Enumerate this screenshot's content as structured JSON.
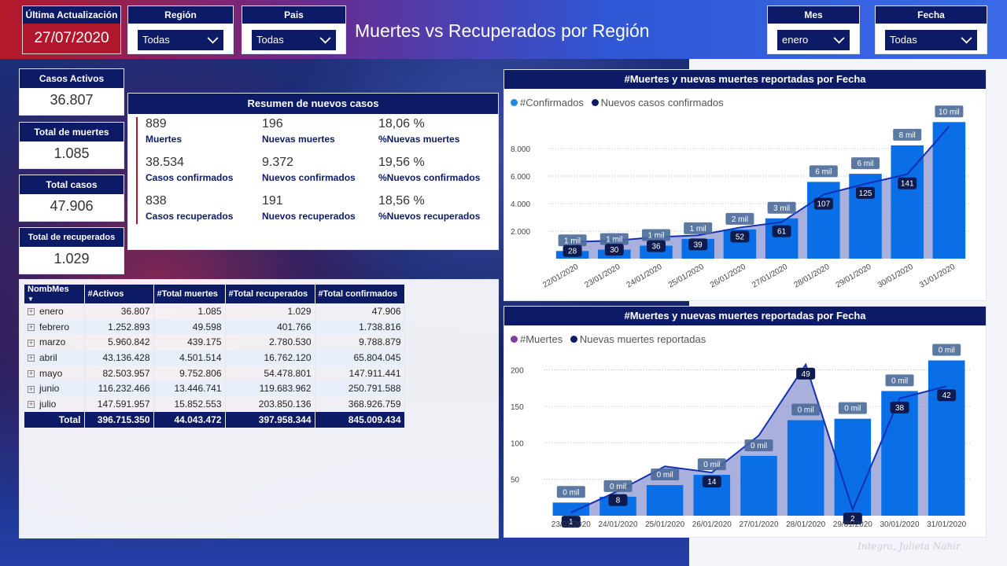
{
  "header": {
    "last_update_label": "Última Actualización",
    "last_update_value": "27/07/2020",
    "title": "Muertes vs Recuperados por Región",
    "slicers": [
      {
        "label": "Región",
        "value": "Todas"
      },
      {
        "label": "Pais",
        "value": "Todas"
      },
      {
        "label": "Mes",
        "value": "enero"
      },
      {
        "label": "Fecha",
        "value": "Todas"
      }
    ]
  },
  "kpis": [
    {
      "label": "Casos Activos",
      "value": "36.807"
    },
    {
      "label": "Total de muertes",
      "value": "1.085"
    },
    {
      "label": "Total casos",
      "value": "47.906"
    },
    {
      "label": "Total de recuperados",
      "value": "1.029"
    }
  ],
  "summary": {
    "title": "Resumen de nuevos casos",
    "rows": [
      [
        {
          "n": "889",
          "t": "Muertes"
        },
        {
          "n": "196",
          "t": "Nuevas muertes"
        },
        {
          "n": "18,06 %",
          "t": "%Nuevas muertes"
        }
      ],
      [
        {
          "n": "38.534",
          "t": "Casos confirmados"
        },
        {
          "n": "9.372",
          "t": "Nuevos confirmados"
        },
        {
          "n": "19,56 %",
          "t": "%Nuevos confirmados"
        }
      ],
      [
        {
          "n": "838",
          "t": "Casos recuperados"
        },
        {
          "n": "191",
          "t": "Nuevos recuperados"
        },
        {
          "n": "18,56 %",
          "t": "%Nuevos recuperados"
        }
      ]
    ]
  },
  "table": {
    "headers": [
      "NombMes",
      "#Activos",
      "#Total muertes",
      "#Total recuperados",
      "#Total confirmados"
    ],
    "rows": [
      [
        "enero",
        "36.807",
        "1.085",
        "1.029",
        "47.906"
      ],
      [
        "febrero",
        "1.252.893",
        "49.598",
        "401.766",
        "1.738.816"
      ],
      [
        "marzo",
        "5.960.842",
        "439.175",
        "2.780.530",
        "9.788.879"
      ],
      [
        "abril",
        "43.136.428",
        "4.501.514",
        "16.762.120",
        "65.804.045"
      ],
      [
        "mayo",
        "82.503.957",
        "9.752.806",
        "54.478.801",
        "147.911.441"
      ],
      [
        "junio",
        "116.232.466",
        "13.446.741",
        "119.683.962",
        "250.791.588"
      ],
      [
        "julio",
        "147.591.957",
        "15.852.553",
        "203.850.136",
        "368.926.759"
      ]
    ],
    "total": [
      "Total",
      "396.715.350",
      "44.043.472",
      "397.958.344",
      "845.009.434"
    ]
  },
  "colors": {
    "navy": "#0d1b66",
    "red": "#b0172d",
    "bar_blue": "#0a6fe6",
    "line_blue": "#1230b4",
    "area": "#9aa2d6"
  },
  "chart_data": [
    {
      "type": "bar",
      "title": "#Muertes y nuevas muertes reportadas por Fecha",
      "legend": [
        "#Confirmados",
        "Nuevos casos confirmados"
      ],
      "legend_colors": [
        "#1e88e5",
        "#0d1b66"
      ],
      "categories": [
        "22/01/2020",
        "23/01/2020",
        "24/01/2020",
        "25/01/2020",
        "26/01/2020",
        "27/01/2020",
        "28/01/2020",
        "29/01/2020",
        "30/01/2020",
        "31/01/2020"
      ],
      "series": [
        {
          "name": "#Confirmados",
          "values": [
            555,
            653,
            941,
            1434,
            2118,
            2927,
            5578,
            6166,
            8234,
            9927
          ],
          "labels": [
            "1 mil",
            "1 mil",
            "1 mil",
            "1 mil",
            "2 mil",
            "3 mil",
            "6 mil",
            "6 mil",
            "8 mil",
            "10 mil"
          ]
        },
        {
          "name": "Nuevos casos confirmados",
          "values": [
            28,
            30,
            36,
            39,
            52,
            61,
            107,
            125,
            141,
            221
          ],
          "labels": [
            "28",
            "30",
            "36",
            "39",
            "52",
            "61",
            "107",
            "125",
            "141",
            ""
          ]
        }
      ],
      "yticks": [
        "2.000",
        "4.000",
        "6.000",
        "8.000"
      ],
      "ylim": [
        0,
        10000
      ],
      "line_ylim": [
        0,
        230
      ],
      "legend_position": "top-left"
    },
    {
      "type": "bar",
      "title": "#Muertes y nuevas muertes reportadas por Fecha",
      "legend": [
        "#Muertes",
        "Nuevas muertes reportadas"
      ],
      "legend_colors": [
        "#7b3fa0",
        "#0d1b66"
      ],
      "categories": [
        "23/01/2020",
        "24/01/2020",
        "25/01/2020",
        "26/01/2020",
        "27/01/2020",
        "28/01/2020",
        "29/01/2020",
        "30/01/2020",
        "31/01/2020"
      ],
      "series": [
        {
          "name": "#Muertes",
          "values": [
            18,
            26,
            42,
            56,
            82,
            131,
            133,
            171,
            213
          ],
          "labels": [
            "0 mil",
            "0 mil",
            "0 mil",
            "0 mil",
            "0 mil",
            "0 mil",
            "0 mil",
            "0 mil",
            "0 mil"
          ]
        },
        {
          "name": "Nuevas muertes reportadas",
          "values": [
            1,
            8,
            16,
            14,
            26,
            49,
            2,
            38,
            42
          ],
          "labels": [
            "1",
            "8",
            "",
            "14",
            "",
            "49",
            "2",
            "38",
            "42"
          ]
        }
      ],
      "yticks": [
        "50",
        "100",
        "150",
        "200"
      ],
      "ylim": [
        0,
        220
      ],
      "line_ylim": [
        0,
        52
      ],
      "legend_position": "top-left"
    }
  ],
  "watermark": "Integra, Julieta Nahir"
}
